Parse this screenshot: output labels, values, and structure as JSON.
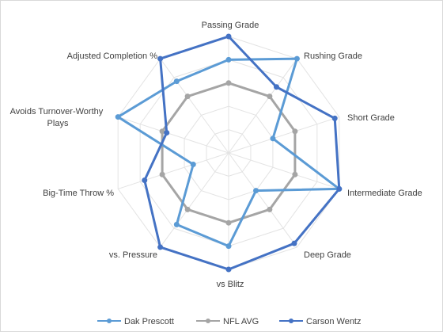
{
  "chart_data": {
    "type": "radar",
    "title": "",
    "axes": [
      "Passing Grade",
      "Rushing Grade",
      "Short Grade",
      "Intermediate Grade",
      "Deep Grade",
      "vs Blitz",
      "vs. Pressure",
      "Big-Time Throw %",
      "Avoids Turnover-Worthy Plays",
      "Adjusted Completion %"
    ],
    "r_range": [
      0,
      5
    ],
    "grid": true,
    "legend_position": "bottom",
    "series": [
      {
        "name": "Dak Prescott",
        "color": "#5b9bd5",
        "values": [
          4.0,
          5.0,
          2.0,
          5.0,
          2.0,
          4.0,
          3.8,
          1.6,
          5.0,
          3.8
        ]
      },
      {
        "name": "NFL AVG",
        "color": "#a5a5a5",
        "values": [
          3.0,
          3.0,
          3.0,
          3.0,
          3.0,
          3.0,
          3.0,
          3.0,
          3.0,
          3.0
        ]
      },
      {
        "name": "Carson Wentz",
        "color": "#4472c4",
        "values": [
          5.0,
          3.5,
          4.8,
          5.0,
          4.8,
          5.0,
          5.0,
          3.8,
          2.8,
          5.0
        ]
      }
    ]
  }
}
